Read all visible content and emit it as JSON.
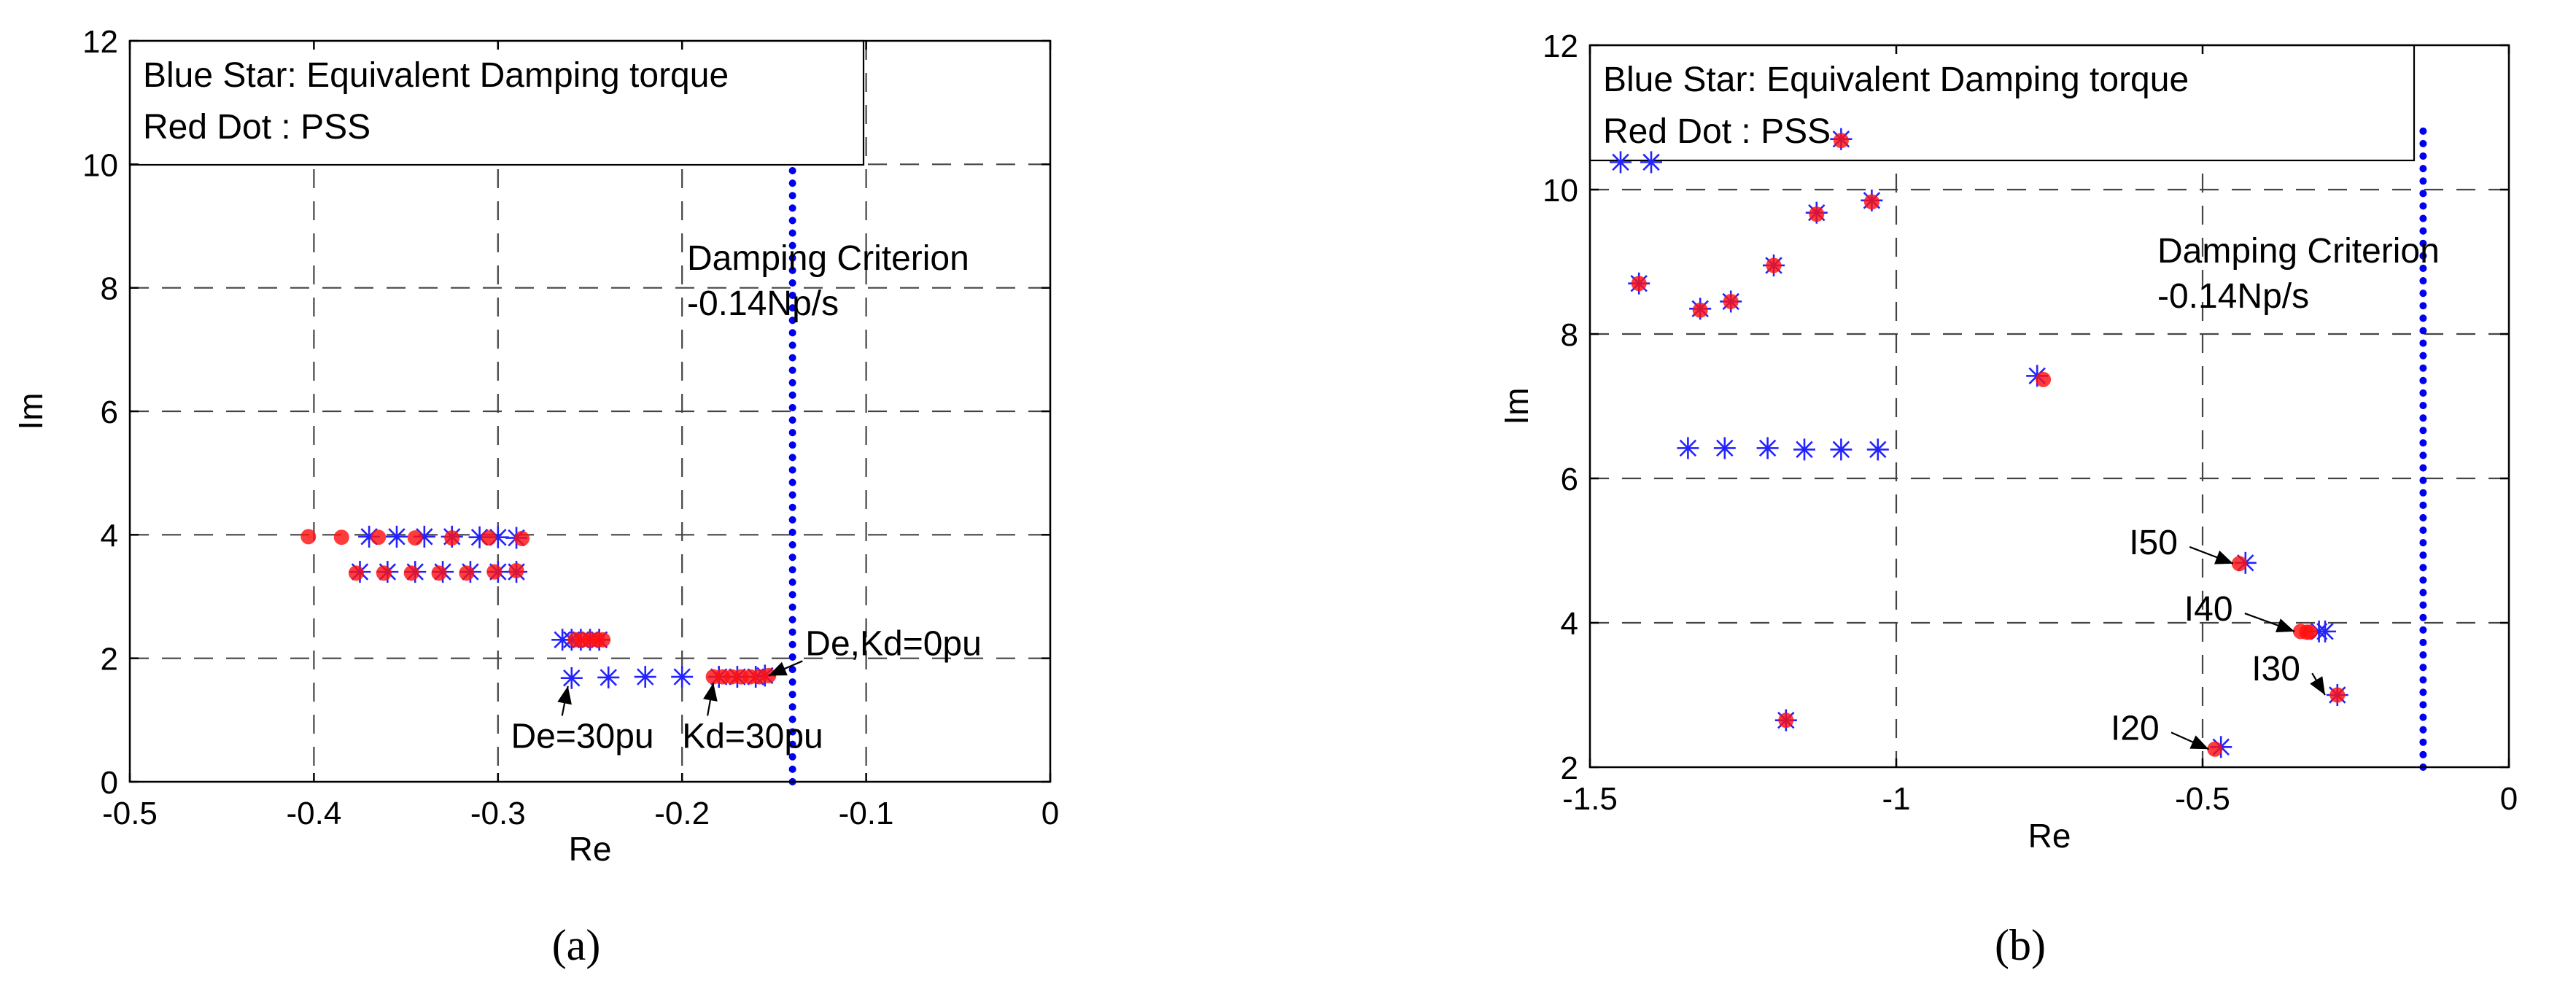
{
  "chart_data": [
    {
      "type": "scatter",
      "panel": "a",
      "caption": "(a)",
      "xlabel": "Re",
      "ylabel": "Im",
      "xlim": [
        -0.5,
        0
      ],
      "ylim": [
        0,
        12
      ],
      "xticks": [
        -0.5,
        -0.4,
        -0.3,
        -0.2,
        -0.1,
        0
      ],
      "xtick_labels": [
        "-0.5",
        "-0.4",
        "-0.3",
        "-0.2",
        "-0.1",
        "0"
      ],
      "yticks": [
        0,
        2,
        4,
        6,
        8,
        10,
        12
      ],
      "ytick_labels": [
        "0",
        "2",
        "4",
        "6",
        "8",
        "10",
        "12"
      ],
      "grid": true,
      "legend_position": "top-left",
      "legend": [
        "Blue Star: Equivalent Damping torque",
        "Red Dot : PSS"
      ],
      "criterion": {
        "x": -0.14,
        "y_range": [
          0,
          12
        ],
        "label_line1": "Damping Criterion",
        "label_line2": "-0.14Np/s"
      },
      "series": [
        {
          "marker": "star",
          "color": "#2323ff",
          "points": [
            [
              -0.37,
              3.97
            ],
            [
              -0.355,
              3.97
            ],
            [
              -0.34,
              3.97
            ],
            [
              -0.325,
              3.97
            ],
            [
              -0.31,
              3.96
            ],
            [
              -0.3,
              3.96
            ],
            [
              -0.29,
              3.95
            ],
            [
              -0.375,
              3.4
            ],
            [
              -0.36,
              3.4
            ],
            [
              -0.345,
              3.4
            ],
            [
              -0.33,
              3.4
            ],
            [
              -0.315,
              3.4
            ],
            [
              -0.3,
              3.4
            ],
            [
              -0.29,
              3.4
            ],
            [
              -0.265,
              2.3
            ],
            [
              -0.26,
              2.3
            ],
            [
              -0.255,
              2.3
            ],
            [
              -0.25,
              2.3
            ],
            [
              -0.245,
              2.3
            ],
            [
              -0.26,
              1.68
            ],
            [
              -0.24,
              1.69
            ],
            [
              -0.22,
              1.7
            ],
            [
              -0.2,
              1.7
            ],
            [
              -0.18,
              1.7
            ],
            [
              -0.17,
              1.7
            ],
            [
              -0.16,
              1.7
            ],
            [
              -0.155,
              1.72
            ]
          ]
        },
        {
          "marker": "dot",
          "color": "#ff1111",
          "points": [
            [
              -0.403,
              3.97
            ],
            [
              -0.385,
              3.96
            ],
            [
              -0.365,
              3.96
            ],
            [
              -0.345,
              3.95
            ],
            [
              -0.325,
              3.95
            ],
            [
              -0.305,
              3.95
            ],
            [
              -0.287,
              3.94
            ],
            [
              -0.377,
              3.38
            ],
            [
              -0.362,
              3.38
            ],
            [
              -0.347,
              3.38
            ],
            [
              -0.332,
              3.38
            ],
            [
              -0.317,
              3.38
            ],
            [
              -0.302,
              3.4
            ],
            [
              -0.29,
              3.42
            ],
            [
              -0.258,
              2.3
            ],
            [
              -0.254,
              2.3
            ],
            [
              -0.25,
              2.3
            ],
            [
              -0.246,
              2.3
            ],
            [
              -0.243,
              2.3
            ],
            [
              -0.183,
              1.7
            ],
            [
              -0.178,
              1.7
            ],
            [
              -0.173,
              1.7
            ],
            [
              -0.168,
              1.7
            ],
            [
              -0.163,
              1.7
            ],
            [
              -0.158,
              1.7
            ],
            [
              -0.153,
              1.72
            ]
          ]
        }
      ],
      "annotations": [
        {
          "text": "De,Kd=0pu",
          "x": -0.133,
          "y": 2.05,
          "arrow_to": [
            -0.153,
            1.72
          ]
        },
        {
          "text": "De=30pu",
          "x": -0.293,
          "y": 0.55,
          "arrow_to": [
            -0.262,
            1.55
          ]
        },
        {
          "text": "Kd=30pu",
          "x": -0.2,
          "y": 0.55,
          "arrow_to": [
            -0.183,
            1.6
          ]
        }
      ]
    },
    {
      "type": "scatter",
      "panel": "b",
      "caption": "(b)",
      "xlabel": "Re",
      "ylabel": "Im",
      "xlim": [
        -1.5,
        0
      ],
      "ylim": [
        2,
        12
      ],
      "xticks": [
        -1.5,
        -1,
        -0.5,
        0
      ],
      "xtick_labels": [
        "-1.5",
        "-1",
        "-0.5",
        "0"
      ],
      "yticks": [
        2,
        4,
        6,
        8,
        10,
        12
      ],
      "ytick_labels": [
        "2",
        "4",
        "6",
        "8",
        "10",
        "12"
      ],
      "grid": true,
      "legend_position": "top-left",
      "legend": [
        "Blue Star: Equivalent Damping torque",
        "Red Dot  : PSS"
      ],
      "criterion": {
        "x": -0.14,
        "y_range": [
          2,
          10.85
        ],
        "label_line1": "Damping Criterion",
        "label_line2": "-0.14Np/s"
      },
      "series": [
        {
          "marker": "star",
          "color": "#2323ff",
          "points": [
            [
              -1.45,
              10.38
            ],
            [
              -1.4,
              10.38
            ],
            [
              -1.09,
              10.7
            ],
            [
              -1.42,
              8.7
            ],
            [
              -1.32,
              8.35
            ],
            [
              -1.27,
              8.45
            ],
            [
              -1.2,
              8.95
            ],
            [
              -1.13,
              9.68
            ],
            [
              -1.04,
              9.85
            ],
            [
              -0.77,
              7.42
            ],
            [
              -1.34,
              6.42
            ],
            [
              -1.28,
              6.42
            ],
            [
              -1.21,
              6.42
            ],
            [
              -1.15,
              6.4
            ],
            [
              -1.09,
              6.4
            ],
            [
              -1.03,
              6.4
            ],
            [
              -0.43,
              4.83
            ],
            [
              -0.31,
              3.88
            ],
            [
              -0.3,
              3.88
            ],
            [
              -0.28,
              3.0
            ],
            [
              -1.18,
              2.65
            ],
            [
              -0.47,
              2.28
            ]
          ]
        },
        {
          "marker": "dot",
          "color": "#ff1111",
          "points": [
            [
              -1.09,
              10.68
            ],
            [
              -1.42,
              8.7
            ],
            [
              -1.32,
              8.33
            ],
            [
              -1.27,
              8.45
            ],
            [
              -1.2,
              8.95
            ],
            [
              -1.13,
              9.66
            ],
            [
              -1.04,
              9.83
            ],
            [
              -0.76,
              7.37
            ],
            [
              -0.44,
              4.82
            ],
            [
              -0.34,
              3.88
            ],
            [
              -0.33,
              3.87
            ],
            [
              -0.325,
              3.87
            ],
            [
              -0.28,
              3.0
            ],
            [
              -1.18,
              2.65
            ],
            [
              -0.48,
              2.25
            ]
          ]
        }
      ],
      "annotations": [
        {
          "text": "I50",
          "x": -0.62,
          "y": 4.95,
          "arrow_to": [
            -0.45,
            4.82
          ]
        },
        {
          "text": "I40",
          "x": -0.53,
          "y": 4.03,
          "arrow_to": [
            -0.35,
            3.88
          ]
        },
        {
          "text": "I30",
          "x": -0.42,
          "y": 3.2,
          "arrow_to": [
            -0.3,
            3.0
          ]
        },
        {
          "text": "I20",
          "x": -0.65,
          "y": 2.38,
          "arrow_to": [
            -0.49,
            2.25
          ]
        }
      ]
    }
  ]
}
